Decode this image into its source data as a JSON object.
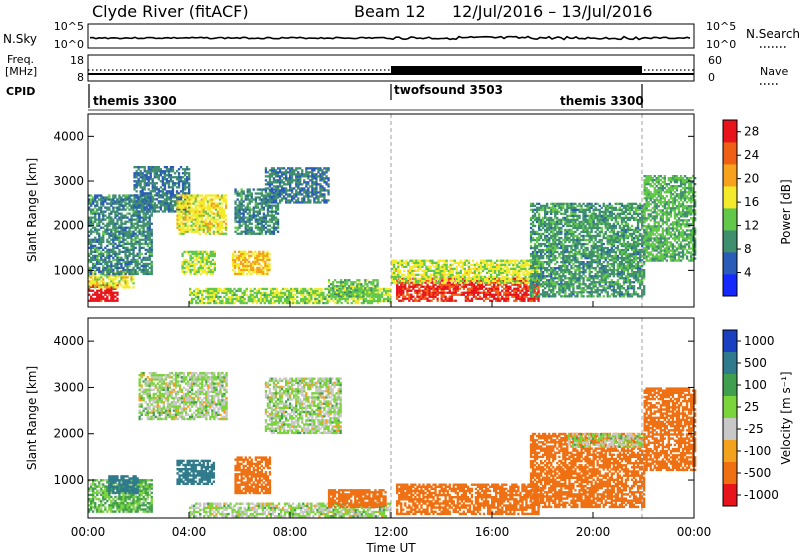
{
  "header": {
    "station": "Clyde River (fitACF)",
    "beam": "Beam 12",
    "date_range": "12/Jul/2016 – 13/Jul/2016"
  },
  "top_panels": {
    "nsky": {
      "left_label": "N.Sky",
      "right_label": "N.Search",
      "left_ticks": [
        "10^5",
        "10^0"
      ],
      "right_ticks": [
        "10^5",
        "10^0"
      ]
    },
    "freq": {
      "left_label_1": "Freq.",
      "left_label_2": "[MHz]",
      "right_label": "Nave",
      "left_ticks": [
        "18",
        "8"
      ],
      "right_ticks": [
        "60",
        "0"
      ]
    },
    "cpid": {
      "label": "CPID",
      "segments": [
        {
          "name": "themis 3300",
          "start_hour": 0,
          "end_hour": 12
        },
        {
          "name": "twofsound 3503",
          "start_hour": 12,
          "end_hour": 22
        },
        {
          "name": "themis 3300",
          "start_hour": 22,
          "end_hour": 24
        }
      ],
      "extra_labels": [
        {
          "name": "themis 3300",
          "at_hour": 18.2
        }
      ]
    }
  },
  "chart_data": [
    {
      "type": "heatmap",
      "name": "power",
      "ylabel": "Slant Range [km]",
      "xlabel": "Time UT",
      "ylim": [
        180,
        4500
      ],
      "xlim": [
        0,
        24
      ],
      "yticks": [
        "1000",
        "2000",
        "3000",
        "4000"
      ],
      "xticks": [
        "00:00",
        "04:00",
        "08:00",
        "12:00",
        "16:00",
        "20:00",
        "00:00"
      ],
      "colorbar": {
        "label": "Power [dB]",
        "ticks": [
          "4",
          "8",
          "12",
          "16",
          "20",
          "24",
          "28"
        ],
        "range": [
          0,
          30
        ],
        "colors": [
          "#1428ff",
          "#2a5bb8",
          "#3f8f6e",
          "#62c84a",
          "#f2ea2a",
          "#f7a21c",
          "#ef5f16",
          "#e8141c"
        ]
      },
      "echo_regions": [
        {
          "t0": 0.0,
          "t1": 1.2,
          "r0": 300,
          "r1": 700,
          "level": 29
        },
        {
          "t0": 0.0,
          "t1": 1.8,
          "r0": 600,
          "r1": 1000,
          "level": 17
        },
        {
          "t0": 0.0,
          "t1": 2.5,
          "r0": 900,
          "r1": 2700,
          "level": 9
        },
        {
          "t0": 1.8,
          "t1": 4.0,
          "r0": 2300,
          "r1": 3300,
          "level": 8
        },
        {
          "t0": 3.5,
          "t1": 5.5,
          "r0": 1800,
          "r1": 2700,
          "level": 17
        },
        {
          "t0": 3.7,
          "t1": 5.0,
          "r0": 900,
          "r1": 1400,
          "level": 15
        },
        {
          "t0": 5.7,
          "t1": 7.2,
          "r0": 900,
          "r1": 1400,
          "level": 19
        },
        {
          "t0": 5.8,
          "t1": 7.5,
          "r0": 1800,
          "r1": 2800,
          "level": 9
        },
        {
          "t0": 4.0,
          "t1": 12.0,
          "r0": 250,
          "r1": 600,
          "level": 14
        },
        {
          "t0": 7.0,
          "t1": 9.5,
          "r0": 2500,
          "r1": 3300,
          "level": 8
        },
        {
          "t0": 9.5,
          "t1": 11.5,
          "r0": 400,
          "r1": 800,
          "level": 13
        },
        {
          "t0": 12.2,
          "t1": 17.8,
          "r0": 300,
          "r1": 800,
          "level": 27
        },
        {
          "t0": 12.0,
          "t1": 17.8,
          "r0": 700,
          "r1": 1200,
          "level": 16
        },
        {
          "t0": 17.5,
          "t1": 22.0,
          "r0": 400,
          "r1": 2500,
          "level": 10
        },
        {
          "t0": 22.0,
          "t1": 24.0,
          "r0": 1200,
          "r1": 3100,
          "level": 12
        }
      ]
    },
    {
      "type": "heatmap",
      "name": "velocity",
      "ylabel": "Slant Range [km]",
      "xlabel": "Time UT",
      "ylim": [
        180,
        4500
      ],
      "xlim": [
        0,
        24
      ],
      "yticks": [
        "1000",
        "2000",
        "3000",
        "4000"
      ],
      "xticks": [
        "00:00",
        "04:00",
        "08:00",
        "12:00",
        "16:00",
        "20:00",
        "00:00"
      ],
      "colorbar": {
        "label": "Velocity [m s⁻¹]",
        "ticks": [
          "1000",
          "500",
          "100",
          "25",
          "-25",
          "-100",
          "-500",
          "-1000"
        ],
        "colors": [
          "#1a3fc0",
          "#2f7a8c",
          "#3f9f4e",
          "#7cd43c",
          "#c8c8c8",
          "#f2a21c",
          "#ef7012",
          "#e8141c"
        ]
      },
      "echo_regions": [
        {
          "t0": 0.0,
          "t1": 2.5,
          "r0": 300,
          "r1": 1000,
          "level": 25
        },
        {
          "t0": 0.8,
          "t1": 2.0,
          "r0": 700,
          "r1": 1100,
          "level": 300
        },
        {
          "t0": 2.0,
          "t1": 5.5,
          "r0": 2300,
          "r1": 3300,
          "level": 0
        },
        {
          "t0": 3.5,
          "t1": 5.0,
          "r0": 900,
          "r1": 1400,
          "level": 300
        },
        {
          "t0": 5.8,
          "t1": 7.2,
          "r0": 700,
          "r1": 1500,
          "level": -300
        },
        {
          "t0": 4.0,
          "t1": 12.0,
          "r0": 200,
          "r1": 500,
          "level": 0
        },
        {
          "t0": 7.0,
          "t1": 10.0,
          "r0": 2000,
          "r1": 3200,
          "level": 0
        },
        {
          "t0": 9.5,
          "t1": 11.8,
          "r0": 400,
          "r1": 800,
          "level": -200
        },
        {
          "t0": 12.2,
          "t1": 17.8,
          "r0": 250,
          "r1": 900,
          "level": -150
        },
        {
          "t0": 17.5,
          "t1": 22.0,
          "r0": 400,
          "r1": 2000,
          "level": -300
        },
        {
          "t0": 19.0,
          "t1": 22.0,
          "r0": 1700,
          "r1": 2000,
          "level": 0
        },
        {
          "t0": 22.0,
          "t1": 24.0,
          "r0": 1200,
          "r1": 3000,
          "level": -200
        }
      ]
    }
  ]
}
